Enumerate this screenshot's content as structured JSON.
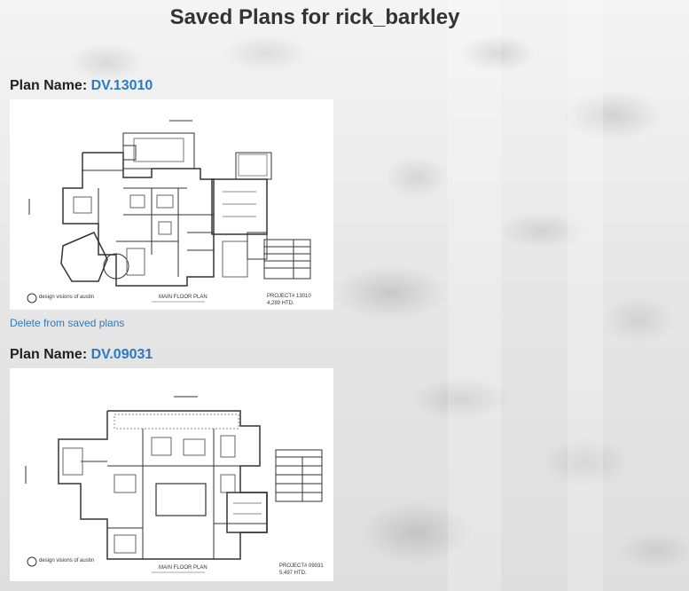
{
  "page": {
    "title": "Saved Plans for rick_barkley"
  },
  "plans": [
    {
      "label": "Plan Name:",
      "name": "DV.13010",
      "image_caption": "MAIN FLOOR PLAN",
      "project_line1": "PROJECT# 13010",
      "project_line2": "4,289 HTD.",
      "logo_text": "design visions of austin",
      "delete_label": "Delete from saved plans"
    },
    {
      "label": "Plan Name:",
      "name": "DV.09031",
      "image_caption": "MAIN FLOOR PLAN",
      "project_line1": "PROJECT# 09031",
      "project_line2": "5,497 HTD.",
      "logo_text": "design visions of austin"
    }
  ],
  "colors": {
    "link": "#2c7ac2",
    "heading": "#333333"
  }
}
